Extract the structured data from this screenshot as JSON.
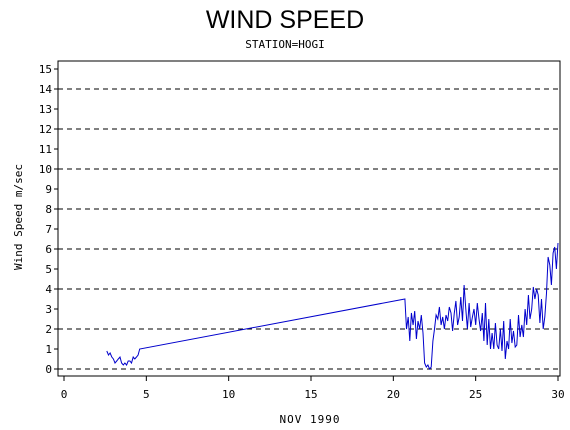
{
  "chart_data": {
    "type": "line",
    "title": "WIND SPEED",
    "subtitle": "STATION=HOGI",
    "xlabel": "NOV 1990",
    "ylabel": "Wind Speed m/sec",
    "xlim": [
      0,
      30
    ],
    "ylim": [
      0,
      15
    ],
    "x_ticks": [
      0,
      5,
      10,
      15,
      20,
      25,
      30
    ],
    "y_ticks": [
      0,
      1,
      2,
      3,
      4,
      5,
      6,
      7,
      8,
      9,
      10,
      11,
      12,
      13,
      14,
      15
    ],
    "dashed_gridlines_y": [
      0,
      2,
      4,
      6,
      8,
      10,
      12,
      14
    ],
    "line_color": "#0000cc",
    "series": [
      {
        "x": [
          2.6,
          2.7,
          2.8,
          2.9,
          3.0,
          3.1,
          3.2,
          3.3,
          3.4,
          3.5,
          3.6,
          3.7,
          3.8,
          3.9,
          4.0,
          4.1,
          4.2,
          4.3,
          4.4,
          4.5,
          4.6,
          20.7,
          20.8,
          20.9,
          21.0,
          21.1,
          21.2,
          21.3,
          21.4,
          21.5,
          21.6,
          21.7,
          21.8,
          21.9,
          22.0,
          22.1,
          22.2,
          22.3,
          22.4,
          22.5,
          22.6,
          22.7,
          22.8,
          22.9,
          23.0,
          23.1,
          23.2,
          23.3,
          23.4,
          23.5,
          23.6,
          23.7,
          23.8,
          23.9,
          24.0,
          24.1,
          24.2,
          24.3,
          24.4,
          24.5,
          24.6,
          24.7,
          24.8,
          24.9,
          25.0,
          25.1,
          25.2,
          25.3,
          25.4,
          25.5,
          25.6,
          25.7,
          25.8,
          25.9,
          26.0,
          26.1,
          26.2,
          26.3,
          26.4,
          26.5,
          26.6,
          26.7,
          26.8,
          26.9,
          27.0,
          27.1,
          27.2,
          27.3,
          27.4,
          27.5,
          27.6,
          27.7,
          27.8,
          27.9,
          28.0,
          28.1,
          28.2,
          28.3,
          28.4,
          28.5,
          28.6,
          28.7,
          28.8,
          28.9,
          29.0,
          29.1,
          29.2,
          29.3,
          29.4,
          29.5,
          29.6,
          29.7,
          29.8,
          29.9,
          30.0
        ],
        "y": [
          0.9,
          0.7,
          0.8,
          0.6,
          0.5,
          0.3,
          0.4,
          0.5,
          0.6,
          0.3,
          0.2,
          0.3,
          0.2,
          0.4,
          0.4,
          0.3,
          0.6,
          0.5,
          0.6,
          0.7,
          1.0,
          3.5,
          2.0,
          2.6,
          1.4,
          2.8,
          2.2,
          2.9,
          1.5,
          2.4,
          2.0,
          2.7,
          1.8,
          0.3,
          0.1,
          0.2,
          0.0,
          0.1,
          1.4,
          2.0,
          2.7,
          2.5,
          3.1,
          2.2,
          2.6,
          2.0,
          2.7,
          2.4,
          3.1,
          2.8,
          1.9,
          2.8,
          3.4,
          2.2,
          2.6,
          3.6,
          2.4,
          4.2,
          3.0,
          2.0,
          3.3,
          2.1,
          2.6,
          3.0,
          2.2,
          3.3,
          2.5,
          1.9,
          2.8,
          1.4,
          3.3,
          1.2,
          2.5,
          1.0,
          1.8,
          1.0,
          2.3,
          1.2,
          1.0,
          2.0,
          0.9,
          2.4,
          0.5,
          1.4,
          1.0,
          2.5,
          1.3,
          1.9,
          1.1,
          1.2,
          2.7,
          1.6,
          2.2,
          1.6,
          3.0,
          2.2,
          3.7,
          2.5,
          3.0,
          4.1,
          3.5,
          4.0,
          3.7,
          2.3,
          3.5,
          2.0,
          2.6,
          3.8,
          5.6,
          5.2,
          4.2,
          5.8,
          6.1,
          5.0,
          6.3
        ]
      }
    ]
  }
}
